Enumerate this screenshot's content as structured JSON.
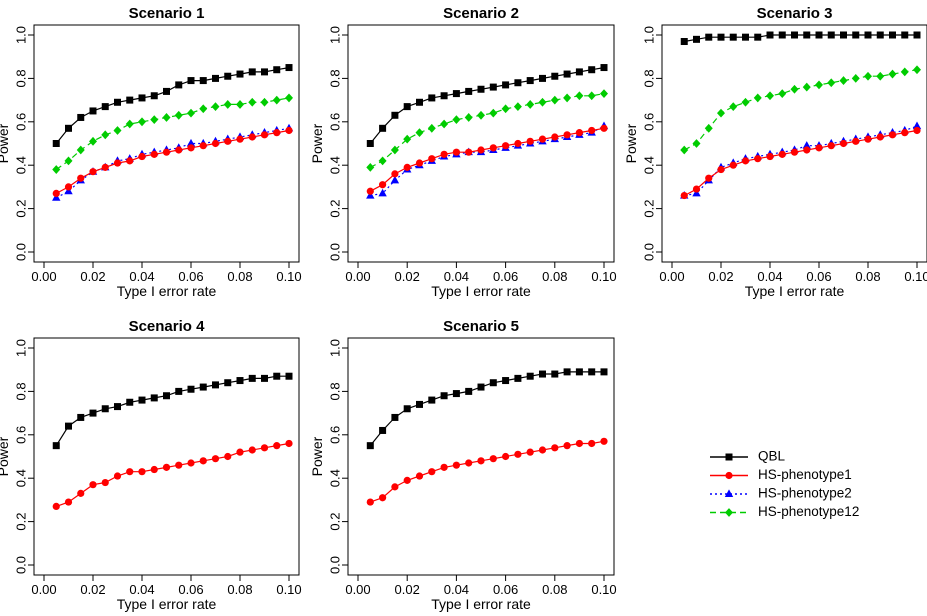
{
  "chart_data": [
    {
      "type": "line",
      "title": "Scenario 1",
      "xlabel": "Type I error rate",
      "ylabel": "Power",
      "xlim": [
        0,
        0.1
      ],
      "ylim": [
        0,
        1
      ],
      "xticks": [
        "0.00",
        "0.02",
        "0.04",
        "0.06",
        "0.08",
        "0.10"
      ],
      "yticks": [
        "0.0",
        "0.2",
        "0.4",
        "0.6",
        "0.8",
        "1.0"
      ],
      "x": [
        0.005,
        0.01,
        0.015,
        0.02,
        0.025,
        0.03,
        0.035,
        0.04,
        0.045,
        0.05,
        0.055,
        0.06,
        0.065,
        0.07,
        0.075,
        0.08,
        0.085,
        0.09,
        0.095,
        0.1
      ],
      "series": [
        {
          "name": "QBL",
          "values": [
            0.5,
            0.57,
            0.62,
            0.65,
            0.67,
            0.69,
            0.7,
            0.71,
            0.72,
            0.74,
            0.77,
            0.79,
            0.79,
            0.8,
            0.81,
            0.82,
            0.83,
            0.83,
            0.84,
            0.85
          ]
        },
        {
          "name": "HS-phenotype1",
          "values": [
            0.27,
            0.3,
            0.34,
            0.37,
            0.39,
            0.41,
            0.42,
            0.44,
            0.45,
            0.46,
            0.47,
            0.48,
            0.49,
            0.5,
            0.51,
            0.52,
            0.53,
            0.54,
            0.55,
            0.56
          ]
        },
        {
          "name": "HS-phenotype2",
          "values": [
            0.25,
            0.28,
            0.33,
            0.37,
            0.39,
            0.42,
            0.43,
            0.45,
            0.46,
            0.47,
            0.48,
            0.5,
            0.5,
            0.51,
            0.52,
            0.53,
            0.54,
            0.55,
            0.56,
            0.57
          ]
        },
        {
          "name": "HS-phenotype12",
          "values": [
            0.38,
            0.42,
            0.47,
            0.51,
            0.54,
            0.56,
            0.59,
            0.6,
            0.61,
            0.62,
            0.63,
            0.64,
            0.66,
            0.67,
            0.68,
            0.68,
            0.69,
            0.69,
            0.7,
            0.71
          ]
        }
      ]
    },
    {
      "type": "line",
      "title": "Scenario 2",
      "xlabel": "Type I error rate",
      "ylabel": "Power",
      "xlim": [
        0,
        0.1
      ],
      "ylim": [
        0,
        1
      ],
      "xticks": [
        "0.00",
        "0.02",
        "0.04",
        "0.06",
        "0.08",
        "0.10"
      ],
      "yticks": [
        "0.0",
        "0.2",
        "0.4",
        "0.6",
        "0.8",
        "1.0"
      ],
      "x": [
        0.005,
        0.01,
        0.015,
        0.02,
        0.025,
        0.03,
        0.035,
        0.04,
        0.045,
        0.05,
        0.055,
        0.06,
        0.065,
        0.07,
        0.075,
        0.08,
        0.085,
        0.09,
        0.095,
        0.1
      ],
      "series": [
        {
          "name": "QBL",
          "values": [
            0.5,
            0.57,
            0.63,
            0.67,
            0.69,
            0.71,
            0.72,
            0.73,
            0.74,
            0.75,
            0.76,
            0.77,
            0.78,
            0.79,
            0.8,
            0.81,
            0.82,
            0.83,
            0.84,
            0.85
          ]
        },
        {
          "name": "HS-phenotype1",
          "values": [
            0.28,
            0.31,
            0.36,
            0.39,
            0.41,
            0.43,
            0.45,
            0.46,
            0.46,
            0.47,
            0.48,
            0.49,
            0.5,
            0.51,
            0.52,
            0.53,
            0.54,
            0.55,
            0.56,
            0.57
          ]
        },
        {
          "name": "HS-phenotype2",
          "values": [
            0.26,
            0.27,
            0.33,
            0.38,
            0.4,
            0.42,
            0.44,
            0.45,
            0.46,
            0.46,
            0.47,
            0.48,
            0.49,
            0.5,
            0.51,
            0.52,
            0.53,
            0.54,
            0.55,
            0.58
          ]
        },
        {
          "name": "HS-phenotype12",
          "values": [
            0.39,
            0.42,
            0.47,
            0.52,
            0.55,
            0.57,
            0.59,
            0.61,
            0.62,
            0.63,
            0.64,
            0.66,
            0.67,
            0.68,
            0.69,
            0.7,
            0.71,
            0.72,
            0.72,
            0.73
          ]
        }
      ]
    },
    {
      "type": "line",
      "title": "Scenario 3",
      "xlabel": "Type I error rate",
      "ylabel": "Power",
      "xlim": [
        0,
        0.1
      ],
      "ylim": [
        0,
        1
      ],
      "xticks": [
        "0.00",
        "0.02",
        "0.04",
        "0.06",
        "0.08",
        "0.10"
      ],
      "yticks": [
        "0.0",
        "0.2",
        "0.4",
        "0.6",
        "0.8",
        "1.0"
      ],
      "x": [
        0.005,
        0.01,
        0.015,
        0.02,
        0.025,
        0.03,
        0.035,
        0.04,
        0.045,
        0.05,
        0.055,
        0.06,
        0.065,
        0.07,
        0.075,
        0.08,
        0.085,
        0.09,
        0.095,
        0.1
      ],
      "series": [
        {
          "name": "QBL",
          "values": [
            0.97,
            0.98,
            0.99,
            0.99,
            0.99,
            0.99,
            0.99,
            1.0,
            1.0,
            1.0,
            1.0,
            1.0,
            1.0,
            1.0,
            1.0,
            1.0,
            1.0,
            1.0,
            1.0,
            1.0
          ]
        },
        {
          "name": "HS-phenotype1",
          "values": [
            0.26,
            0.29,
            0.34,
            0.38,
            0.4,
            0.42,
            0.43,
            0.44,
            0.45,
            0.46,
            0.47,
            0.48,
            0.49,
            0.5,
            0.51,
            0.52,
            0.53,
            0.54,
            0.55,
            0.56
          ]
        },
        {
          "name": "HS-phenotype2",
          "values": [
            0.26,
            0.27,
            0.33,
            0.39,
            0.41,
            0.43,
            0.44,
            0.45,
            0.46,
            0.47,
            0.49,
            0.49,
            0.5,
            0.51,
            0.52,
            0.53,
            0.54,
            0.55,
            0.56,
            0.58
          ]
        },
        {
          "name": "HS-phenotype12",
          "values": [
            0.47,
            0.5,
            0.57,
            0.64,
            0.67,
            0.69,
            0.71,
            0.72,
            0.73,
            0.75,
            0.76,
            0.77,
            0.78,
            0.79,
            0.8,
            0.81,
            0.81,
            0.82,
            0.83,
            0.84
          ]
        }
      ]
    },
    {
      "type": "line",
      "title": "Scenario 4",
      "xlabel": "Type I error rate",
      "ylabel": "Power",
      "xlim": [
        0,
        0.1
      ],
      "ylim": [
        0,
        1
      ],
      "xticks": [
        "0.00",
        "0.02",
        "0.04",
        "0.06",
        "0.08",
        "0.10"
      ],
      "yticks": [
        "0.0",
        "0.2",
        "0.4",
        "0.6",
        "0.8",
        "1.0"
      ],
      "x": [
        0.005,
        0.01,
        0.015,
        0.02,
        0.025,
        0.03,
        0.035,
        0.04,
        0.045,
        0.05,
        0.055,
        0.06,
        0.065,
        0.07,
        0.075,
        0.08,
        0.085,
        0.09,
        0.095,
        0.1
      ],
      "series": [
        {
          "name": "QBL",
          "values": [
            0.55,
            0.64,
            0.68,
            0.7,
            0.72,
            0.73,
            0.75,
            0.76,
            0.77,
            0.78,
            0.8,
            0.81,
            0.82,
            0.83,
            0.84,
            0.85,
            0.86,
            0.86,
            0.87,
            0.87
          ]
        },
        {
          "name": "HS-phenotype1",
          "values": [
            0.27,
            0.29,
            0.33,
            0.37,
            0.38,
            0.41,
            0.43,
            0.43,
            0.44,
            0.45,
            0.46,
            0.47,
            0.48,
            0.49,
            0.5,
            0.52,
            0.53,
            0.54,
            0.55,
            0.56
          ]
        }
      ]
    },
    {
      "type": "line",
      "title": "Scenario 5",
      "xlabel": "Type I error rate",
      "ylabel": "Power",
      "xlim": [
        0,
        0.1
      ],
      "ylim": [
        0,
        1
      ],
      "xticks": [
        "0.00",
        "0.02",
        "0.04",
        "0.06",
        "0.08",
        "0.10"
      ],
      "yticks": [
        "0.0",
        "0.2",
        "0.4",
        "0.6",
        "0.8",
        "1.0"
      ],
      "x": [
        0.005,
        0.01,
        0.015,
        0.02,
        0.025,
        0.03,
        0.035,
        0.04,
        0.045,
        0.05,
        0.055,
        0.06,
        0.065,
        0.07,
        0.075,
        0.08,
        0.085,
        0.09,
        0.095,
        0.1
      ],
      "series": [
        {
          "name": "QBL",
          "values": [
            0.55,
            0.62,
            0.68,
            0.72,
            0.74,
            0.76,
            0.78,
            0.79,
            0.8,
            0.82,
            0.84,
            0.85,
            0.86,
            0.87,
            0.88,
            0.88,
            0.89,
            0.89,
            0.89,
            0.89
          ]
        },
        {
          "name": "HS-phenotype1",
          "values": [
            0.29,
            0.31,
            0.36,
            0.39,
            0.41,
            0.43,
            0.45,
            0.46,
            0.47,
            0.48,
            0.49,
            0.5,
            0.51,
            0.52,
            0.53,
            0.54,
            0.55,
            0.56,
            0.56,
            0.57
          ]
        }
      ]
    }
  ],
  "legend": {
    "placement": "bottom-right",
    "items": [
      {
        "label": "QBL",
        "color": "#000000",
        "marker": "square",
        "dash": "solid"
      },
      {
        "label": "HS-phenotype1",
        "color": "#ff0000",
        "marker": "circle",
        "dash": "solid"
      },
      {
        "label": "HS-phenotype2",
        "color": "#0000ff",
        "marker": "triangle",
        "dash": "dotted"
      },
      {
        "label": "HS-phenotype12",
        "color": "#00cc00",
        "marker": "diamond",
        "dash": "dashed"
      }
    ]
  }
}
